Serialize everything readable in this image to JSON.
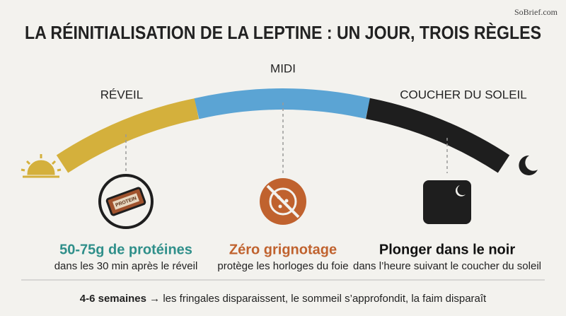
{
  "watermark": "SoBrief.com",
  "title": "LA RÉINITIALISATION DE LA LEPTINE : UN JOUR, TROIS RÈGLES",
  "timeline": {
    "start": "RÉVEIL",
    "middle": "MIDI",
    "end": "COUCHER DU SOLEIL"
  },
  "rules": [
    {
      "headline": "50-75g de protéines",
      "detail": "dans les 30 min après le réveil",
      "icon_text": "PROTEIN"
    },
    {
      "headline": "Zéro grignotage",
      "detail": "protège les horloges du foie"
    },
    {
      "headline": "Plonger dans le noir",
      "detail": "dans l’heure suivant le coucher du soleil"
    }
  ],
  "footer": {
    "emphasis": "4-6 semaines",
    "text": "→ les fringales disparaissent, le sommeil s’approfondit, la faim disparaît"
  }
}
